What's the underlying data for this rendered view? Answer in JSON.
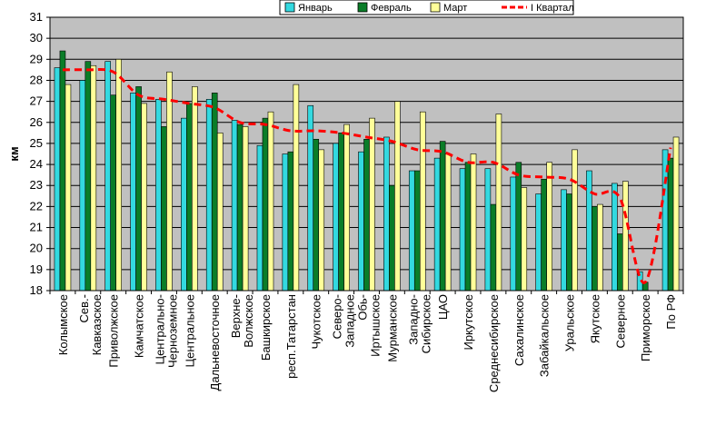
{
  "chart_data": {
    "type": "bar",
    "ylabel": "км",
    "ylim": [
      18,
      31
    ],
    "yticks": [
      18,
      19,
      20,
      21,
      22,
      23,
      24,
      25,
      26,
      27,
      28,
      29,
      30,
      31
    ],
    "grid": true,
    "legend_position": "top-right",
    "categories": [
      "Колымское",
      "Сев.-Кавказское",
      "Приволжское",
      "Камчатское",
      "Центрально-Черноземное",
      "Центральное",
      "Дальневосточное",
      "Верхне-Волжское",
      "Башкирское",
      "респ.Татарстан",
      "Чукотское",
      "Северо-Западное",
      "Обь-Иртышское",
      "Мурманское",
      "Западно-Сибирское",
      "ЦАО",
      "Иркутское",
      "Среднесибирское",
      "Сахалинское",
      "Забайкальское",
      "Уральское",
      "Якутское",
      "Северное",
      "Приморское",
      "По РФ"
    ],
    "category_lines": [
      [
        "Колымское"
      ],
      [
        "Сев.-",
        "Кавказское"
      ],
      [
        "Приволжское"
      ],
      [
        "Камчатское"
      ],
      [
        "Центрально-",
        "Черноземное"
      ],
      [
        "Центральное"
      ],
      [
        "Дальневосточное"
      ],
      [
        "Верхне-",
        "Волжское"
      ],
      [
        "Башкирское"
      ],
      [
        "респ.Татарстан"
      ],
      [
        "Чукотское"
      ],
      [
        "Северо-",
        "Западное"
      ],
      [
        "Обь-",
        "Иртышское"
      ],
      [
        "Мурманское"
      ],
      [
        "Западно-",
        "Сибирское"
      ],
      [
        "ЦАО"
      ],
      [
        "Иркутское"
      ],
      [
        "Среднесибирское"
      ],
      [
        "Сахалинское"
      ],
      [
        "Забайкальское"
      ],
      [
        "Уральское"
      ],
      [
        "Якутское"
      ],
      [
        "Северное"
      ],
      [
        "Приморское"
      ],
      [
        "По РФ"
      ]
    ],
    "series": [
      {
        "name": "Январь",
        "kind": "bar",
        "color": "#33d9e0",
        "values": [
          28.6,
          28.0,
          28.9,
          27.4,
          27.1,
          26.2,
          27.1,
          26.1,
          24.9,
          24.5,
          26.8,
          25.0,
          24.6,
          25.3,
          23.7,
          24.3,
          23.8,
          23.8,
          23.4,
          22.6,
          22.8,
          23.7,
          23.1,
          18.9,
          24.7
        ]
      },
      {
        "name": "Февраль",
        "kind": "bar",
        "color": "#0a7d28",
        "values": [
          29.4,
          28.9,
          27.3,
          27.7,
          25.8,
          26.9,
          27.4,
          25.9,
          26.2,
          24.6,
          25.2,
          25.5,
          25.2,
          23.0,
          23.7,
          25.1,
          24.1,
          22.1,
          24.1,
          23.3,
          22.6,
          22.0,
          20.7,
          18.4,
          24.3
        ]
      },
      {
        "name": "Март",
        "kind": "bar",
        "color": "#ffff99",
        "values": [
          27.8,
          28.7,
          29.0,
          26.9,
          28.4,
          27.7,
          25.5,
          25.8,
          26.5,
          27.8,
          24.7,
          25.9,
          26.2,
          27.0,
          26.5,
          24.5,
          24.5,
          26.4,
          22.9,
          24.1,
          24.7,
          22.1,
          23.2,
          18.0,
          25.3
        ]
      },
      {
        "name": "I Квартал",
        "kind": "line",
        "color": "#ff0000",
        "values": [
          28.5,
          28.5,
          28.4,
          27.3,
          27.1,
          26.9,
          26.7,
          26.0,
          25.9,
          25.6,
          25.6,
          25.5,
          25.3,
          25.1,
          24.7,
          24.6,
          24.1,
          24.1,
          23.5,
          23.4,
          23.3,
          22.6,
          22.4,
          18.4,
          24.8
        ]
      }
    ]
  },
  "colors": {
    "plot_background": "#c0c0c0",
    "gridline": "#000000",
    "bar_outline": "#000000"
  }
}
